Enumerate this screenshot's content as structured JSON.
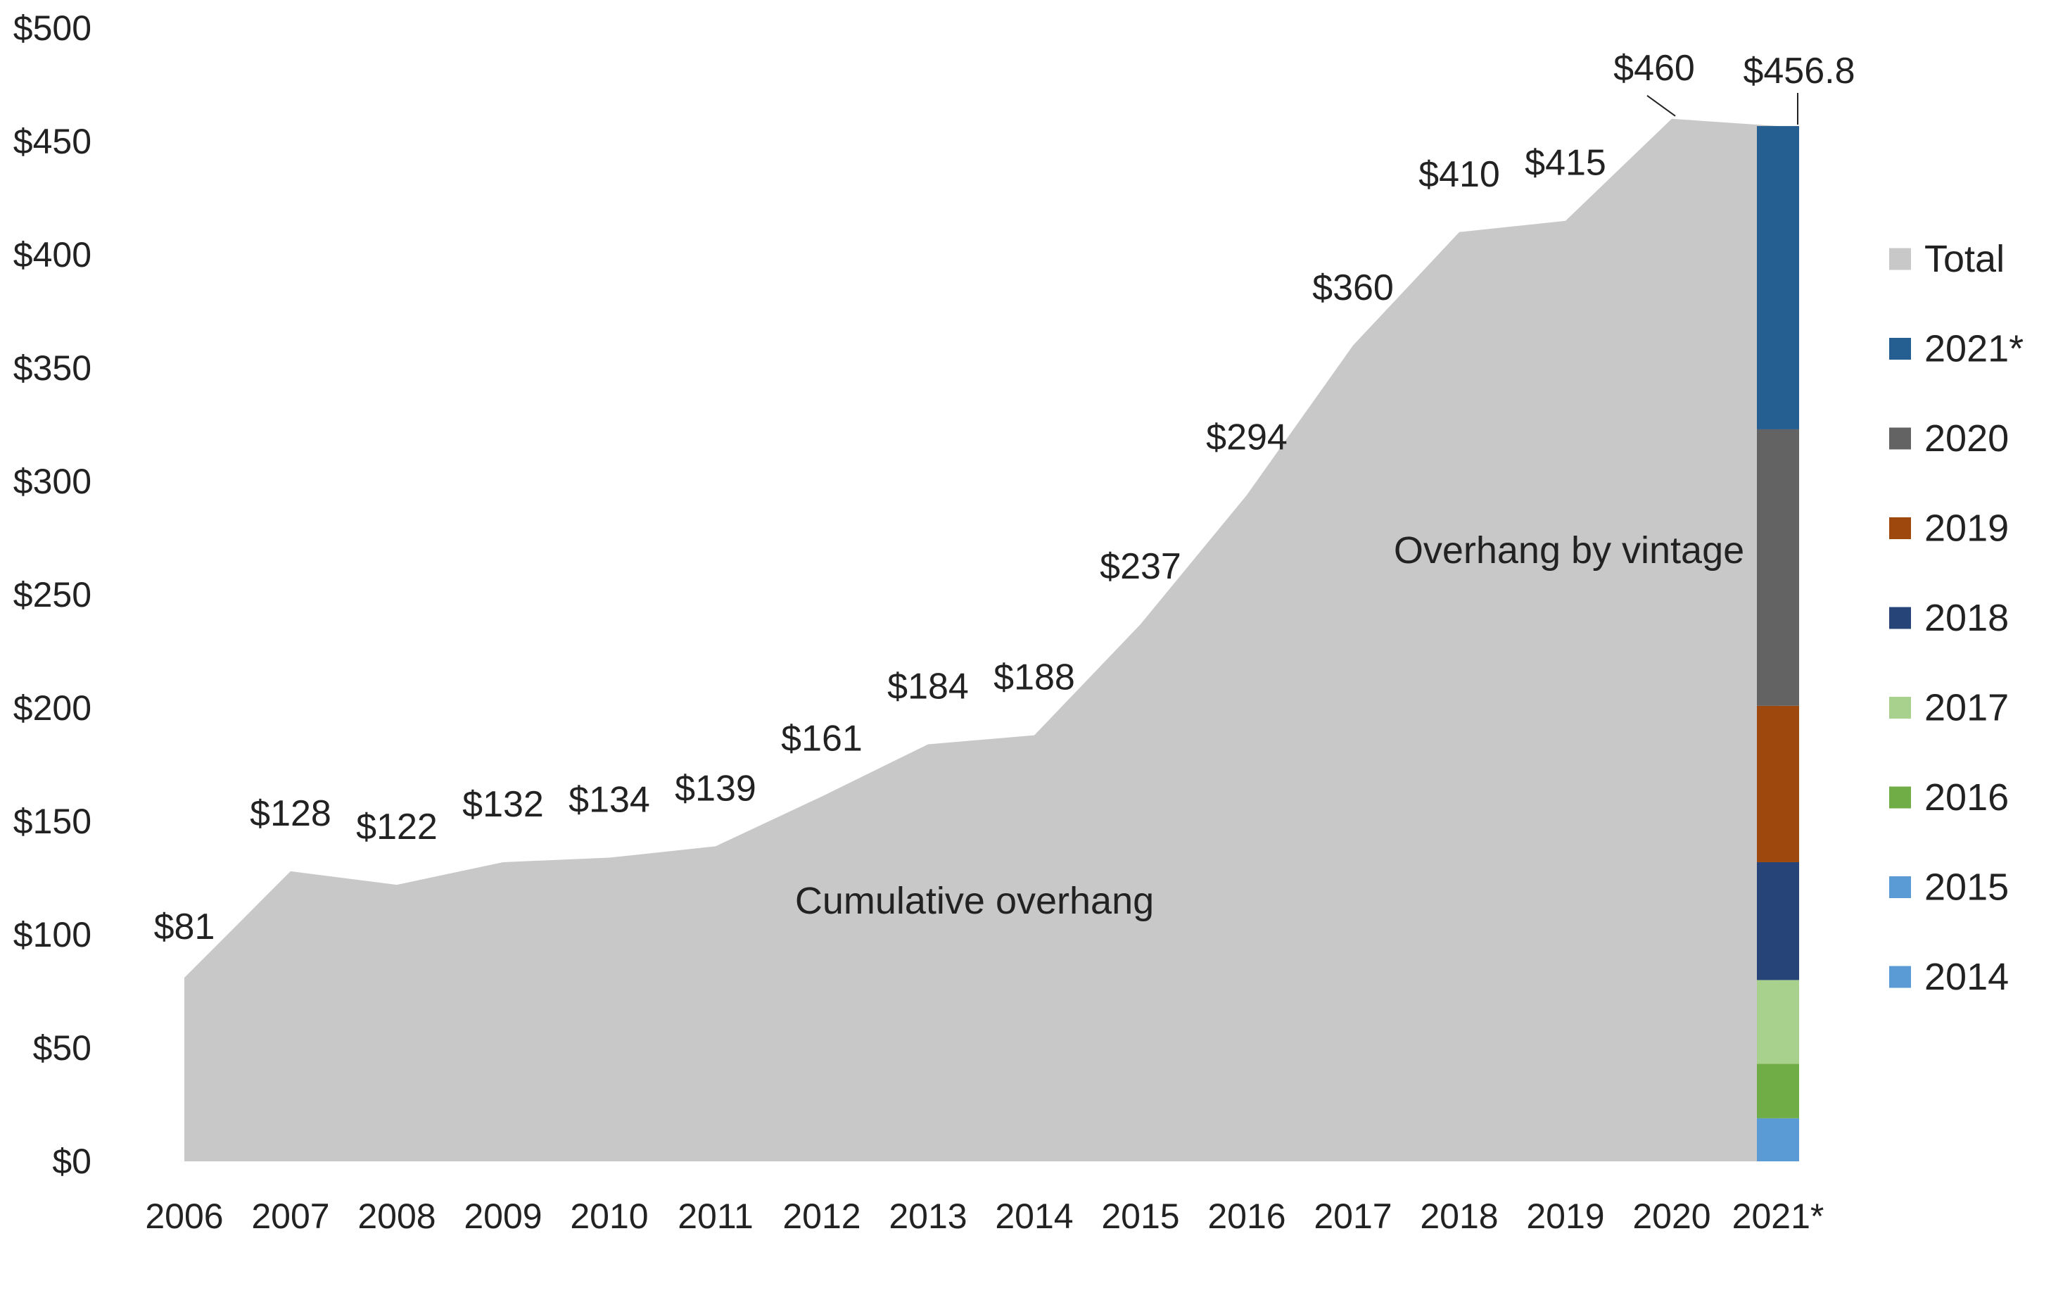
{
  "chart_data": {
    "type": "area",
    "title": "",
    "xlabel": "",
    "ylabel": "",
    "ylim": [
      0,
      500
    ],
    "yticks": [
      "$0",
      "$50",
      "$100",
      "$150",
      "$200",
      "$250",
      "$300",
      "$350",
      "$400",
      "$450",
      "$500"
    ],
    "ytick_values": [
      0,
      50,
      100,
      150,
      200,
      250,
      300,
      350,
      400,
      450,
      500
    ],
    "categories": [
      "2006",
      "2007",
      "2008",
      "2009",
      "2010",
      "2011",
      "2012",
      "2013",
      "2014",
      "2015",
      "2016",
      "2017",
      "2018",
      "2019",
      "2020",
      "2021*"
    ],
    "series": [
      {
        "name": "Total",
        "color": "#c8c8c8",
        "values": [
          81,
          128,
          122,
          132,
          134,
          139,
          161,
          184,
          188,
          237,
          294,
          360,
          410,
          415,
          460,
          456.8
        ],
        "data_labels": [
          "$81",
          "$128",
          "$122",
          "$132",
          "$134",
          "$139",
          "$161",
          "$184",
          "$188",
          "$237",
          "$294",
          "$360",
          "$410",
          "$415",
          "$460",
          "$456.8"
        ]
      }
    ],
    "stacked_bar": {
      "category": "2021*",
      "segments": [
        {
          "name": "2014",
          "value": 0,
          "color": "#5b9bd5"
        },
        {
          "name": "2015",
          "value": 19,
          "color": "#5b9bd5"
        },
        {
          "name": "2016",
          "value": 24,
          "color": "#70ad47"
        },
        {
          "name": "2017",
          "value": 37,
          "color": "#a9d18e"
        },
        {
          "name": "2018",
          "value": 52,
          "color": "#264478"
        },
        {
          "name": "2019",
          "value": 69,
          "color": "#9e480e"
        },
        {
          "name": "2020",
          "value": 122,
          "color": "#636363"
        },
        {
          "name": "2021*",
          "value": 133.8,
          "color": "#255e91"
        }
      ]
    },
    "legend": {
      "placement": "right",
      "items": [
        {
          "label": "Total",
          "color": "#c8c8c8"
        },
        {
          "label": "2021*",
          "color": "#255e91"
        },
        {
          "label": "2020",
          "color": "#636363"
        },
        {
          "label": "2019",
          "color": "#9e480e"
        },
        {
          "label": "2018",
          "color": "#264478"
        },
        {
          "label": "2017",
          "color": "#a9d18e"
        },
        {
          "label": "2016",
          "color": "#70ad47"
        },
        {
          "label": "2015",
          "color": "#5b9bd5"
        },
        {
          "label": "2014",
          "color": "#5b9bd5"
        }
      ]
    },
    "annotations": {
      "area_label": "Cumulative overhang",
      "bar_label": "Overhang by vintage"
    },
    "grid": false
  }
}
